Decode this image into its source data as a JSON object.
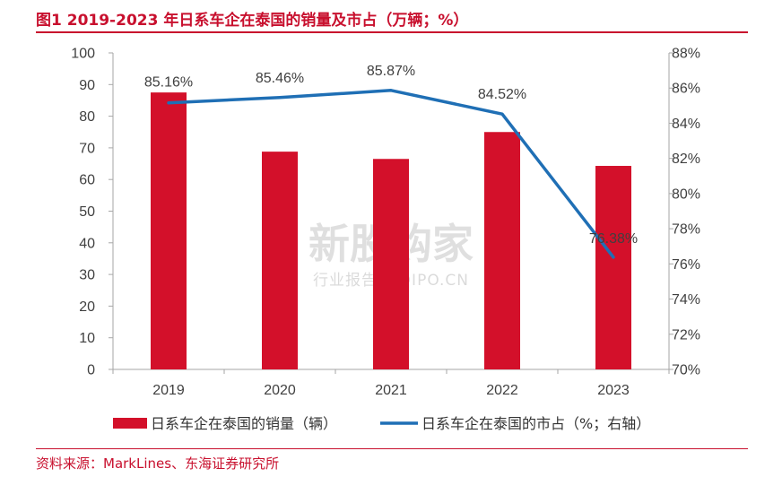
{
  "figure": {
    "title": "图1  2019-2023 年日系车企在泰国的销量及市占（万辆；%）",
    "source": "资料来源：MarkLines、东海证券研究所"
  },
  "watermark": {
    "main": "新股购家",
    "sub": "行业报告 IPOIPO.CN"
  },
  "colors": {
    "bar": "#d3102a",
    "line": "#1f6fb5",
    "accent": "#c8102e"
  },
  "chart_data": {
    "type": "bar+line",
    "categories": [
      "2019",
      "2020",
      "2021",
      "2022",
      "2023"
    ],
    "series": [
      {
        "name": "日系车企在泰国的销量（辆）",
        "type": "bar",
        "axis": "left",
        "values": [
          87.5,
          68.8,
          66.5,
          75.0,
          64.3
        ]
      },
      {
        "name": "日系车企在泰国的市占（%；右轴）",
        "type": "line",
        "axis": "right",
        "values": [
          85.16,
          85.46,
          85.87,
          84.52,
          76.38
        ],
        "labels": [
          "85.16%",
          "85.46%",
          "85.87%",
          "84.52%",
          "76.38%"
        ]
      }
    ],
    "y_left": {
      "min": 0,
      "max": 100,
      "step": 10,
      "ticks": [
        "0",
        "10",
        "20",
        "30",
        "40",
        "50",
        "60",
        "70",
        "80",
        "90",
        "100"
      ]
    },
    "y_right": {
      "min": 70,
      "max": 88,
      "step": 2,
      "ticks": [
        "70%",
        "72%",
        "74%",
        "76%",
        "78%",
        "80%",
        "82%",
        "84%",
        "86%",
        "88%"
      ]
    },
    "legend_position": "bottom",
    "grid": false
  }
}
